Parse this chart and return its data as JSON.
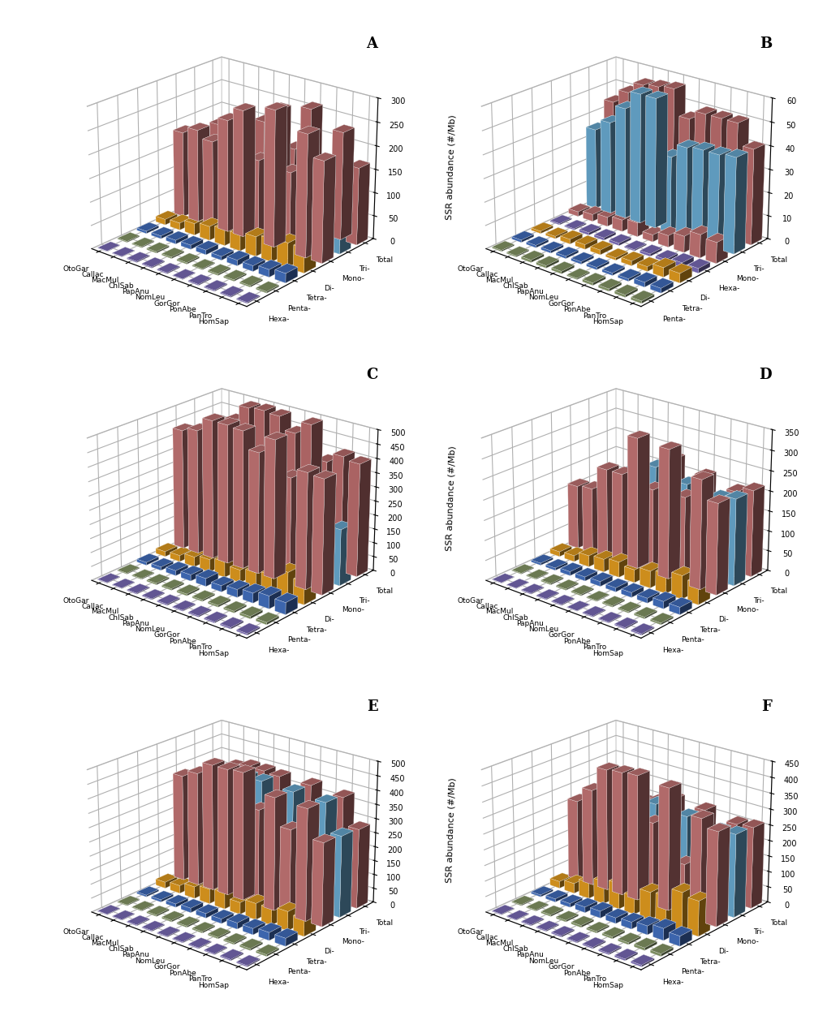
{
  "primates": [
    "OtoGar",
    "CalJac",
    "MacMul",
    "ChlSab",
    "PapAnu",
    "NomLeu",
    "GorGor",
    "PonAbe",
    "PanTro",
    "HomSap"
  ],
  "ylabel": "SSR abundance (#/Mb)",
  "color_map": {
    "Hexa-": "#7B68EE",
    "Penta-": "#8B9E6B",
    "Tetra-": "#4169B0",
    "Di-": "#6BAED6",
    "Mono-": "#C87878",
    "Tri-": "#E8A020",
    "Total": "#C87878"
  },
  "panels": {
    "A": {
      "label": "A",
      "ylim": [
        0,
        300
      ],
      "yticks": [
        0,
        50,
        100,
        150,
        200,
        250,
        300
      ],
      "motif_order": [
        "Hexa-",
        "Penta-",
        "Tetra-",
        "Di-",
        "Mono-",
        "Tri-",
        "Total"
      ],
      "values": {
        "Hexa-": [
          1,
          1,
          2,
          2,
          2,
          1,
          2,
          2,
          2,
          2
        ],
        "Penta-": [
          2,
          2,
          3,
          3,
          3,
          2,
          3,
          3,
          3,
          3
        ],
        "Tetra-": [
          5,
          6,
          8,
          9,
          10,
          8,
          12,
          12,
          16,
          20
        ],
        "Di-": [
          12,
          15,
          25,
          30,
          35,
          35,
          42,
          48,
          52,
          52
        ],
        "Mono-": [
          185,
          200,
          185,
          240,
          270,
          175,
          290,
          170,
          260,
          215
        ],
        "Tri-": [
          125,
          130,
          90,
          95,
          100,
          80,
          100,
          95,
          105,
          55
        ],
        "Total": [
          170,
          185,
          165,
          205,
          240,
          165,
          260,
          155,
          230,
          165
        ]
      }
    },
    "B": {
      "label": "B",
      "ylim": [
        0,
        60
      ],
      "yticks": [
        0,
        10,
        20,
        30,
        40,
        50,
        60
      ],
      "motif_order": [
        "Penta-",
        "Tetra-",
        "Di-",
        "Hexa-",
        "Mono-",
        "Tri-",
        "Total"
      ],
      "values": {
        "Hexa-": [
          0.5,
          0.5,
          1,
          1,
          1,
          0.5,
          1,
          1,
          2,
          2
        ],
        "Penta-": [
          0.5,
          0.5,
          1,
          1,
          1,
          0.5,
          1,
          1,
          1,
          1
        ],
        "Tetra-": [
          1,
          1,
          1,
          1,
          1,
          1,
          1,
          1,
          2,
          2
        ],
        "Di-": [
          1,
          1,
          2,
          2,
          2,
          1,
          2,
          2,
          4,
          4
        ],
        "Mono-": [
          2,
          3,
          4,
          5,
          6,
          3,
          5,
          7,
          10,
          9
        ],
        "Tri-": [
          35,
          40,
          48,
          56,
          56,
          33,
          39,
          40,
          40,
          41
        ],
        "Total": [
          44,
          50,
          55,
          56,
          57,
          46,
          50,
          50,
          50,
          41
        ]
      }
    },
    "C": {
      "label": "C",
      "ylim": [
        0,
        500
      ],
      "yticks": [
        0,
        50,
        100,
        150,
        200,
        250,
        300,
        350,
        400,
        450,
        500
      ],
      "motif_order": [
        "Hexa-",
        "Penta-",
        "Tetra-",
        "Di-",
        "Mono-",
        "Tri-",
        "Total"
      ],
      "values": {
        "Hexa-": [
          2,
          2,
          3,
          3,
          4,
          3,
          4,
          4,
          5,
          5
        ],
        "Penta-": [
          3,
          3,
          5,
          5,
          6,
          5,
          6,
          6,
          8,
          8
        ],
        "Tetra-": [
          10,
          12,
          18,
          22,
          28,
          22,
          28,
          35,
          45,
          42
        ],
        "Di-": [
          18,
          22,
          35,
          45,
          55,
          45,
          55,
          65,
          95,
          80
        ],
        "Mono-": [
          430,
          445,
          495,
          495,
          490,
          430,
          490,
          375,
          410,
          405
        ],
        "Tri-": [
          300,
          320,
          310,
          310,
          310,
          280,
          275,
          225,
          205,
          200
        ],
        "Total": [
          405,
          430,
          490,
          495,
          490,
          445,
          490,
          375,
          410,
          400
        ]
      }
    },
    "D": {
      "label": "D",
      "ylim": [
        0,
        350
      ],
      "yticks": [
        0,
        50,
        100,
        150,
        200,
        250,
        300,
        350
      ],
      "motif_order": [
        "Hexa-",
        "Penta-",
        "Tetra-",
        "Di-",
        "Mono-",
        "Tri-",
        "Total"
      ],
      "values": {
        "Hexa-": [
          1,
          1,
          2,
          2,
          2,
          1,
          2,
          2,
          3,
          3
        ],
        "Penta-": [
          2,
          2,
          3,
          3,
          3,
          2,
          3,
          3,
          4,
          4
        ],
        "Tetra-": [
          5,
          6,
          10,
          10,
          12,
          10,
          12,
          12,
          18,
          18
        ],
        "Di-": [
          12,
          15,
          28,
          32,
          38,
          32,
          42,
          48,
          58,
          52
        ],
        "Mono-": [
          160,
          165,
          225,
          225,
          325,
          210,
          320,
          215,
          270,
          225
        ],
        "Tri-": [
          125,
          140,
          195,
          215,
          235,
          160,
          215,
          100,
          205,
          215
        ],
        "Total": [
          120,
          145,
          170,
          200,
          235,
          170,
          215,
          105,
          200,
          215
        ]
      }
    },
    "E": {
      "label": "E",
      "ylim": [
        0,
        500
      ],
      "yticks": [
        0,
        50,
        100,
        150,
        200,
        250,
        300,
        350,
        400,
        450,
        500
      ],
      "motif_order": [
        "Hexa-",
        "Penta-",
        "Tetra-",
        "Di-",
        "Mono-",
        "Tri-",
        "Total"
      ],
      "values": {
        "Hexa-": [
          2,
          2,
          3,
          3,
          3,
          3,
          3,
          3,
          4,
          4
        ],
        "Penta-": [
          3,
          3,
          5,
          5,
          5,
          5,
          5,
          5,
          6,
          6
        ],
        "Tetra-": [
          6,
          8,
          12,
          16,
          16,
          16,
          22,
          22,
          28,
          28
        ],
        "Di-": [
          22,
          28,
          42,
          52,
          58,
          42,
          58,
          58,
          68,
          62
        ],
        "Mono-": [
          380,
          405,
          450,
          450,
          455,
          340,
          400,
          305,
          395,
          295
        ],
        "Tri-": [
          350,
          378,
          400,
          398,
          398,
          335,
          392,
          295,
          388,
          288
        ],
        "Total": [
          348,
          378,
          393,
          393,
          388,
          328,
          388,
          292,
          378,
          282
        ]
      }
    },
    "F": {
      "label": "F",
      "ylim": [
        0,
        450
      ],
      "yticks": [
        0,
        50,
        100,
        150,
        200,
        250,
        300,
        350,
        400,
        450
      ],
      "motif_order": [
        "Hexa-",
        "Penta-",
        "Tetra-",
        "Di-",
        "Mono-",
        "Tri-",
        "Total"
      ],
      "values": {
        "Hexa-": [
          2,
          2,
          3,
          3,
          4,
          3,
          4,
          4,
          5,
          5
        ],
        "Penta-": [
          3,
          3,
          5,
          5,
          6,
          5,
          6,
          6,
          8,
          8
        ],
        "Tetra-": [
          6,
          10,
          12,
          18,
          22,
          18,
          22,
          28,
          38,
          32
        ],
        "Di-": [
          22,
          32,
          52,
          72,
          82,
          58,
          88,
          92,
          122,
          112
        ],
        "Mono-": [
          260,
          310,
          390,
          395,
          400,
          265,
          390,
          165,
          325,
          300
        ],
        "Tri-": [
          155,
          185,
          250,
          265,
          285,
          195,
          275,
          165,
          260,
          265
        ],
        "Total": [
          150,
          185,
          240,
          255,
          275,
          190,
          270,
          155,
          255,
          260
        ]
      }
    }
  }
}
